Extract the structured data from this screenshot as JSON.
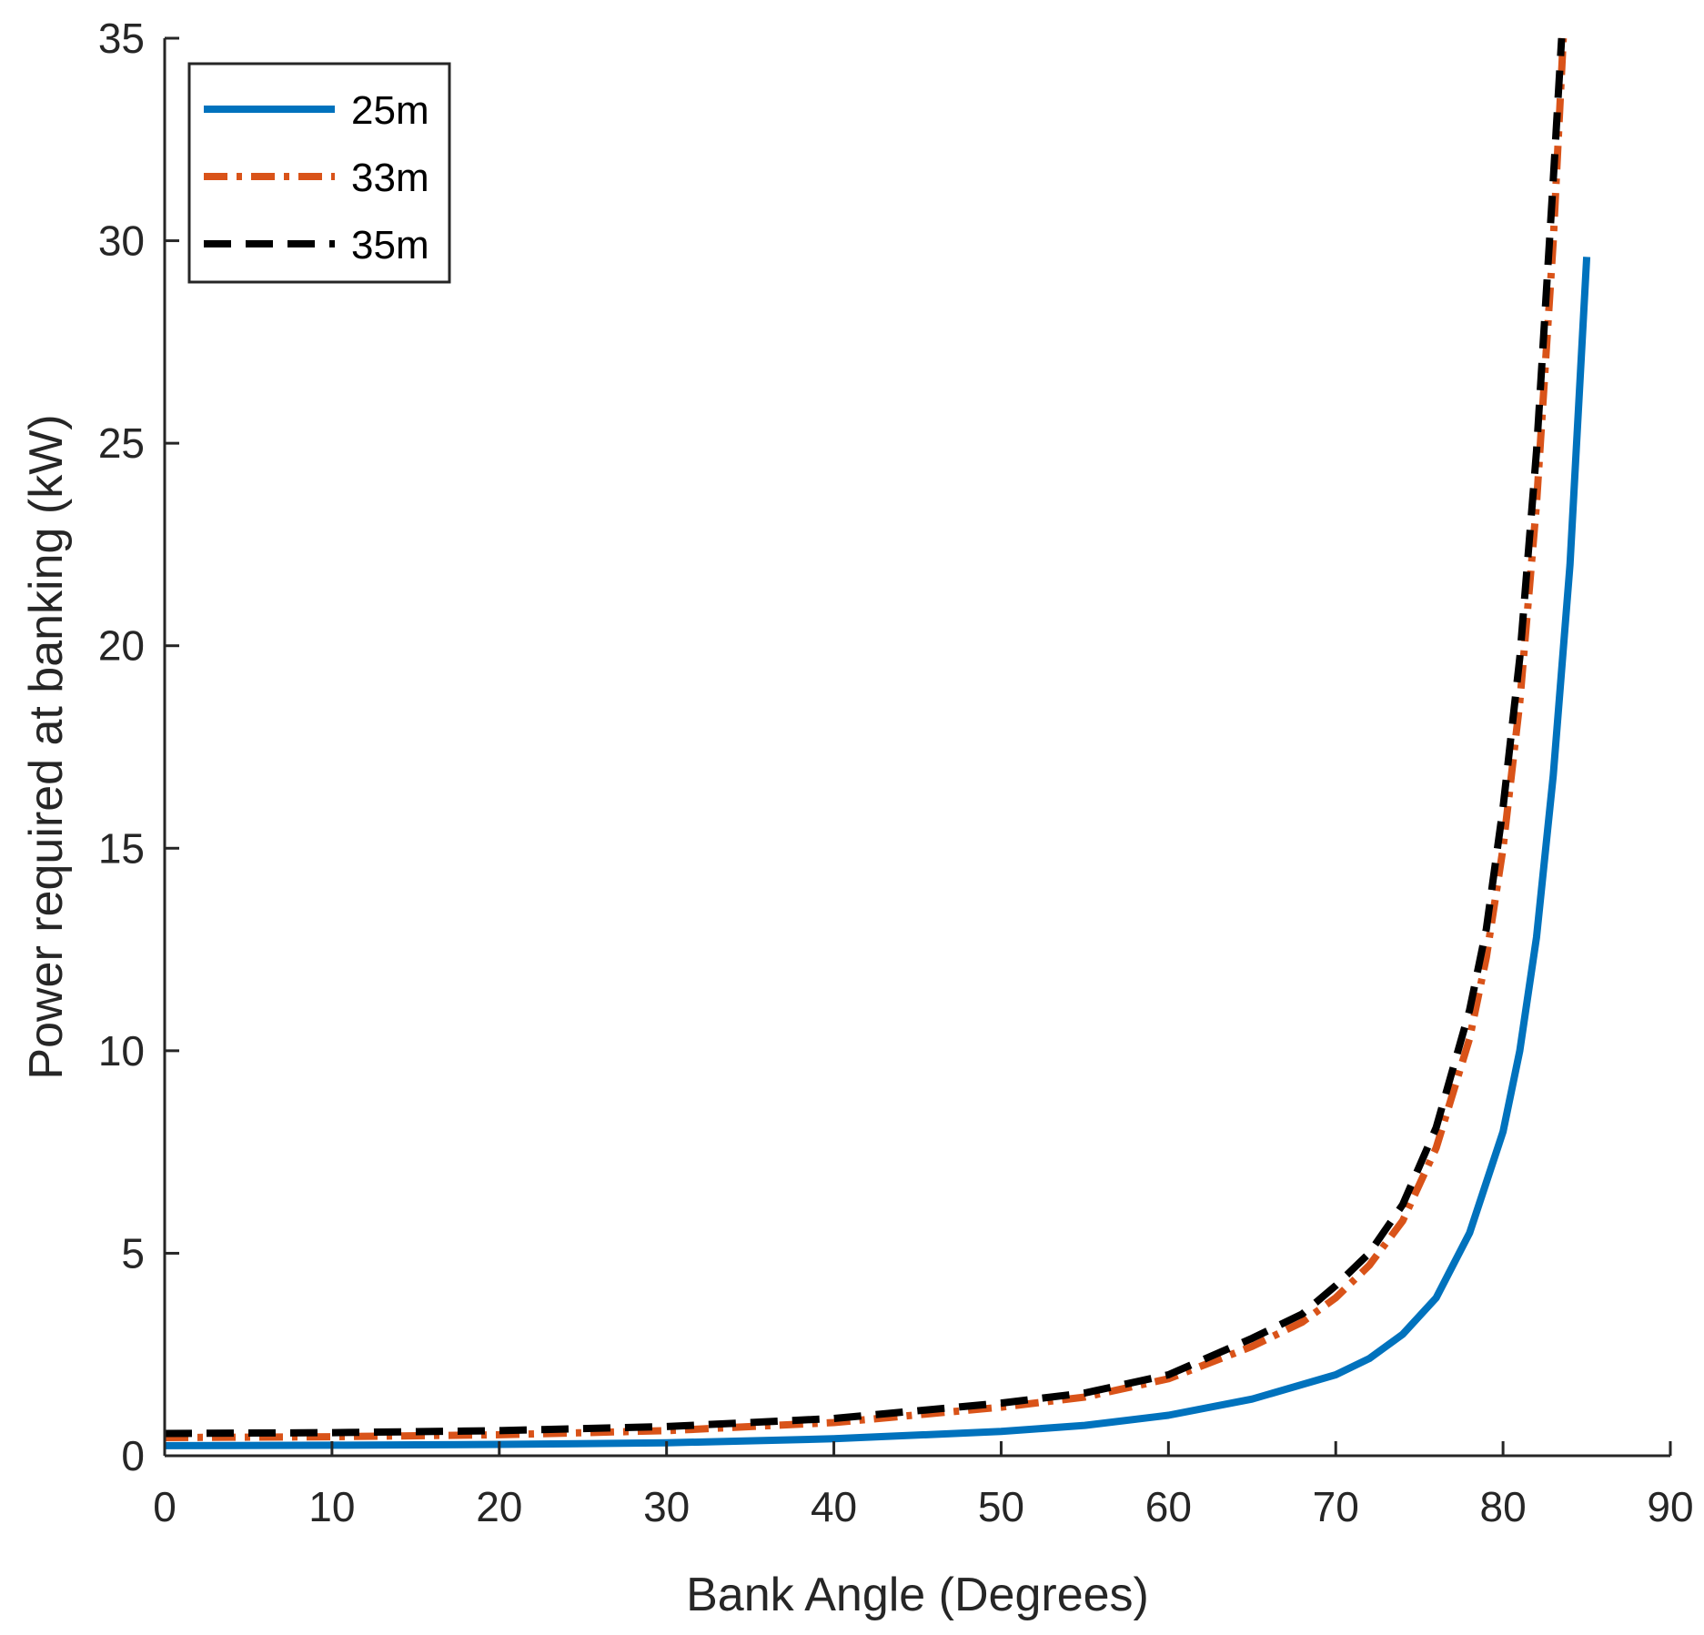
{
  "chart_data": {
    "type": "line",
    "title": "",
    "xlabel": "Bank Angle (Degrees)",
    "ylabel": "Power required at banking (kW)",
    "xlim": [
      0,
      90
    ],
    "ylim": [
      0,
      35
    ],
    "xticks": [
      0,
      10,
      20,
      30,
      40,
      50,
      60,
      70,
      80,
      90
    ],
    "yticks": [
      0,
      5,
      10,
      15,
      20,
      25,
      30,
      35
    ],
    "grid": false,
    "legend_position": "top-left",
    "series": [
      {
        "name": "25m",
        "color": "#0072BD",
        "style": "solid",
        "x": [
          0,
          10,
          20,
          30,
          40,
          50,
          55,
          60,
          65,
          70,
          72,
          74,
          76,
          78,
          80,
          81,
          82,
          83,
          84,
          85
        ],
        "y": [
          0.25,
          0.26,
          0.28,
          0.32,
          0.42,
          0.6,
          0.75,
          1.0,
          1.4,
          2.0,
          2.4,
          3.0,
          3.9,
          5.5,
          8.0,
          10.0,
          12.8,
          16.8,
          22.0,
          29.6
        ]
      },
      {
        "name": "33m",
        "color": "#D95319",
        "style": "dashdot",
        "x": [
          0,
          10,
          20,
          30,
          40,
          50,
          55,
          60,
          65,
          68,
          70,
          72,
          74,
          76,
          78,
          79,
          80,
          81,
          82,
          83,
          83.6
        ],
        "y": [
          0.45,
          0.47,
          0.52,
          0.62,
          0.82,
          1.2,
          1.45,
          1.9,
          2.7,
          3.3,
          3.9,
          4.7,
          5.8,
          7.6,
          10.3,
          12.3,
          15.0,
          18.6,
          23.5,
          30.0,
          35.0
        ]
      },
      {
        "name": "35m",
        "color": "#000000",
        "style": "dashed",
        "x": [
          0,
          10,
          20,
          30,
          40,
          50,
          55,
          60,
          65,
          68,
          70,
          72,
          74,
          76,
          78,
          79,
          80,
          81,
          82,
          83,
          83.5
        ],
        "y": [
          0.55,
          0.57,
          0.62,
          0.72,
          0.92,
          1.3,
          1.55,
          2.0,
          2.9,
          3.5,
          4.2,
          5.0,
          6.2,
          8.1,
          11.0,
          13.0,
          16.0,
          19.7,
          24.8,
          31.5,
          35.0
        ]
      }
    ]
  }
}
